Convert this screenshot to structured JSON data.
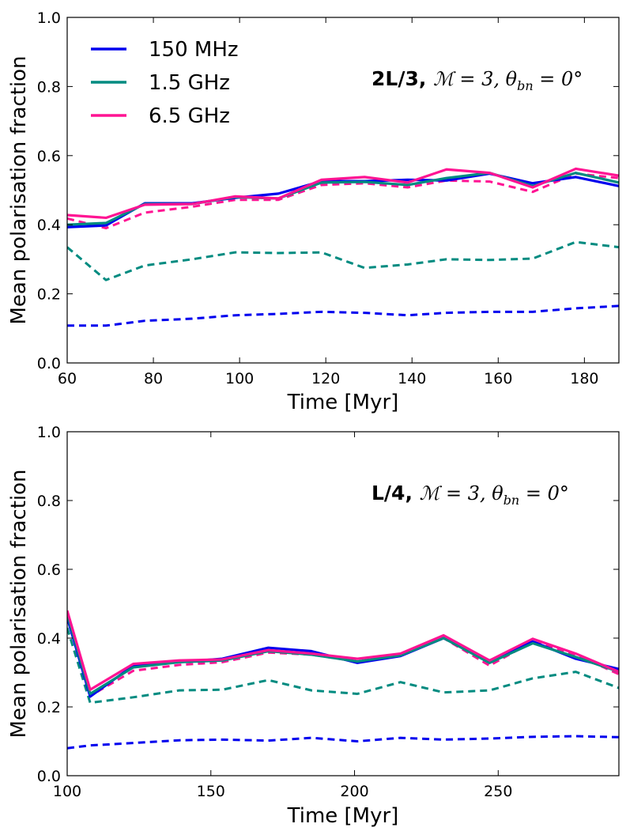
{
  "chart_data": [
    {
      "type": "line",
      "xlabel": "Time [Myr]",
      "ylabel": "Mean polarisation fraction",
      "xlim": [
        60,
        188
      ],
      "ylim": [
        0.0,
        1.0
      ],
      "xticks": [
        60,
        80,
        100,
        120,
        140,
        160,
        180
      ],
      "xtick_labels": [
        "60",
        "80",
        "100",
        "120",
        "140",
        "160",
        "180"
      ],
      "yticks": [
        0.0,
        0.2,
        0.4,
        0.6,
        0.8,
        1.0
      ],
      "ytick_labels": [
        "0.0",
        "0.2",
        "0.4",
        "0.6",
        "0.8",
        "1.0"
      ],
      "annotation": {
        "bold": "2L/3,",
        "mach": "ℳ = 3,",
        "theta": "θ",
        "sub": "bn",
        "angle": " = 0°"
      },
      "legend": {
        "show": true,
        "placement": "upper-left",
        "entries": [
          {
            "label": "150 MHz",
            "color": "#0000ee"
          },
          {
            "label": "1.5 GHz",
            "color": "#008b80"
          },
          {
            "label": "6.5 GHz",
            "color": "#ff1493"
          }
        ]
      },
      "x": [
        60,
        69,
        78,
        89,
        99,
        109,
        119,
        129,
        139,
        148,
        158,
        168,
        178,
        188
      ],
      "series": [
        {
          "name": "150 MHz",
          "color": "#0000ee",
          "style": "solid",
          "values": [
            0.393,
            0.398,
            0.462,
            0.462,
            0.478,
            0.49,
            0.526,
            0.526,
            0.53,
            0.528,
            0.548,
            0.52,
            0.538,
            0.512
          ]
        },
        {
          "name": "1.5 GHz",
          "color": "#008b80",
          "style": "solid",
          "values": [
            0.4,
            0.405,
            0.46,
            0.46,
            0.48,
            0.476,
            0.522,
            0.524,
            0.515,
            0.535,
            0.55,
            0.512,
            0.55,
            0.522
          ]
        },
        {
          "name": "6.5 GHz",
          "color": "#ff1493",
          "style": "solid",
          "values": [
            0.428,
            0.42,
            0.458,
            0.46,
            0.482,
            0.476,
            0.53,
            0.538,
            0.522,
            0.56,
            0.55,
            0.508,
            0.562,
            0.542
          ]
        },
        {
          "name": "150 MHz dashed",
          "color": "#0000ee",
          "style": "dashed",
          "values": [
            0.108,
            0.108,
            0.122,
            0.128,
            0.138,
            0.142,
            0.148,
            0.145,
            0.138,
            0.145,
            0.148,
            0.148,
            0.158,
            0.165
          ]
        },
        {
          "name": "1.5 GHz dashed",
          "color": "#008b80",
          "style": "dashed",
          "values": [
            0.335,
            0.24,
            0.282,
            0.3,
            0.32,
            0.318,
            0.32,
            0.275,
            0.285,
            0.3,
            0.298,
            0.302,
            0.35,
            0.335
          ]
        },
        {
          "name": "6.5 GHz dashed",
          "color": "#ff1493",
          "style": "dashed",
          "values": [
            0.418,
            0.39,
            0.435,
            0.452,
            0.472,
            0.472,
            0.515,
            0.52,
            0.508,
            0.528,
            0.525,
            0.495,
            0.548,
            0.535
          ]
        }
      ]
    },
    {
      "type": "line",
      "xlabel": "Time [Myr]",
      "ylabel": "Mean polarisation fraction",
      "xlim": [
        100,
        292
      ],
      "ylim": [
        0.0,
        1.0
      ],
      "xticks": [
        100,
        150,
        200,
        250
      ],
      "xtick_labels": [
        "100",
        "150",
        "200",
        "250"
      ],
      "yticks": [
        0.0,
        0.2,
        0.4,
        0.6,
        0.8,
        1.0
      ],
      "ytick_labels": [
        "0.0",
        "0.2",
        "0.4",
        "0.6",
        "0.8",
        "1.0"
      ],
      "annotation": {
        "bold": "L/4,",
        "mach": "ℳ = 3,",
        "theta": "θ",
        "sub": "bn",
        "angle": " = 0°"
      },
      "legend": {
        "show": false
      },
      "x": [
        100,
        108,
        123,
        139,
        154,
        170,
        185,
        201,
        216,
        231,
        247,
        262,
        277,
        292
      ],
      "series": [
        {
          "name": "150 MHz",
          "color": "#0000ee",
          "style": "solid",
          "values": [
            0.46,
            0.23,
            0.32,
            0.33,
            0.34,
            0.372,
            0.362,
            0.328,
            0.348,
            0.4,
            0.335,
            0.39,
            0.34,
            0.31
          ]
        },
        {
          "name": "1.5 GHz",
          "color": "#008b80",
          "style": "solid",
          "values": [
            0.47,
            0.238,
            0.315,
            0.33,
            0.335,
            0.362,
            0.352,
            0.332,
            0.35,
            0.4,
            0.328,
            0.385,
            0.345,
            0.302
          ]
        },
        {
          "name": "6.5 GHz",
          "color": "#ff1493",
          "style": "solid",
          "values": [
            0.48,
            0.25,
            0.325,
            0.335,
            0.338,
            0.365,
            0.355,
            0.34,
            0.355,
            0.408,
            0.335,
            0.398,
            0.355,
            0.302
          ]
        },
        {
          "name": "150 MHz dashed",
          "color": "#0000ee",
          "style": "dashed",
          "values": [
            0.08,
            0.088,
            0.095,
            0.103,
            0.105,
            0.102,
            0.11,
            0.1,
            0.11,
            0.105,
            0.108,
            0.113,
            0.115,
            0.112
          ]
        },
        {
          "name": "1.5 GHz dashed",
          "color": "#008b80",
          "style": "dashed",
          "values": [
            0.43,
            0.212,
            0.228,
            0.248,
            0.25,
            0.278,
            0.248,
            0.238,
            0.272,
            0.242,
            0.248,
            0.283,
            0.302,
            0.255
          ]
        },
        {
          "name": "6.5 GHz dashed",
          "color": "#ff1493",
          "style": "dashed",
          "values": [
            0.475,
            0.232,
            0.305,
            0.322,
            0.33,
            0.358,
            0.352,
            0.332,
            0.352,
            0.4,
            0.32,
            0.39,
            0.352,
            0.295
          ]
        }
      ]
    }
  ]
}
